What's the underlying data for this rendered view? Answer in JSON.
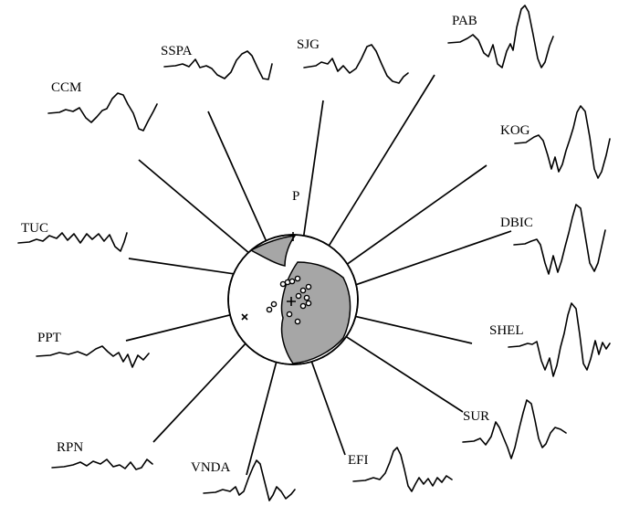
{
  "figure": {
    "p_axis_label": "P",
    "station_labels": [
      "SSPA",
      "SJG",
      "PAB",
      "CCM",
      "KOG",
      "TUC",
      "DBIC",
      "PPT",
      "SHEL",
      "SUR",
      "RPN",
      "VNDA",
      "EFI"
    ]
  }
}
